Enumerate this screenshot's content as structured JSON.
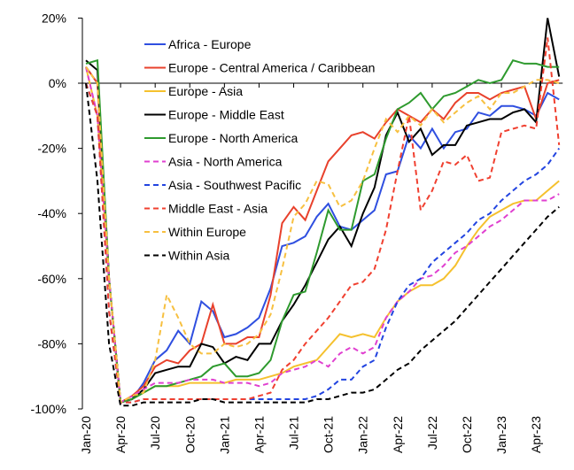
{
  "chart_data": {
    "type": "line",
    "categories": [
      "Jan-20",
      null,
      null,
      "Apr-20",
      null,
      null,
      "Jul-20",
      null,
      null,
      "Oct-20",
      null,
      null,
      "Jan-21",
      null,
      null,
      "Apr-21",
      null,
      null,
      "Jul-21",
      null,
      null,
      "Oct-21",
      null,
      null,
      "Jan-22",
      null,
      null,
      "Apr-22",
      null,
      null,
      "Jul-22",
      null,
      null,
      "Oct-22",
      null,
      null,
      "Jan-23",
      null,
      null,
      "Apr-23",
      null,
      null
    ],
    "ylim": [
      -100,
      20
    ],
    "yticks": [
      {
        "value": -100,
        "label": "-100%"
      },
      {
        "value": -80,
        "label": "-80%"
      },
      {
        "value": -60,
        "label": "-60%"
      },
      {
        "value": -40,
        "label": "-40%"
      },
      {
        "value": -20,
        "label": "-20%"
      },
      {
        "value": 0,
        "label": "0%"
      },
      {
        "value": 20,
        "label": "20%"
      }
    ],
    "grid": false,
    "series": [
      {
        "name": "Africa - Europe",
        "color": "#2f4fe0",
        "dashed": false,
        "values": [
          5,
          0,
          -60,
          -98,
          -97,
          -92,
          -85,
          -82,
          -76,
          -80,
          -67,
          -70,
          -78,
          -77,
          -75,
          -72,
          -63,
          -50,
          -49,
          -47,
          -41,
          -37,
          -44,
          -45,
          -42,
          -39,
          -28,
          -27,
          -16,
          -20,
          -14,
          -20,
          -15,
          -14,
          -9,
          -10,
          -7,
          -7,
          -8,
          -10,
          -3,
          -5
        ]
      },
      {
        "name": "Europe - Central America / Caribbean",
        "color": "#e8412c",
        "dashed": false,
        "values": [
          5,
          0,
          -60,
          -98,
          -96,
          -93,
          -87,
          -85,
          -86,
          -82,
          -80,
          -68,
          -80,
          -80,
          -78,
          -78,
          -65,
          -43,
          -38,
          -42,
          -33,
          -24,
          -20,
          -16,
          -15,
          -17,
          -12,
          -8,
          -10,
          -12,
          -8,
          -11,
          -6,
          -3,
          -3,
          -5,
          -3,
          -2,
          -1,
          -11,
          0,
          1
        ]
      },
      {
        "name": "Europe - Asia",
        "color": "#f5c12e",
        "dashed": false,
        "values": [
          5,
          -10,
          -60,
          -98,
          -97,
          -95,
          -93,
          -93,
          -93,
          -92,
          -92,
          -92,
          -92,
          -91,
          -91,
          -91,
          -90,
          -89,
          -87,
          -86,
          -85,
          -81,
          -77,
          -78,
          -77,
          -78,
          -72,
          -67,
          -64,
          -62,
          -62,
          -60,
          -56,
          -50,
          -45,
          -41,
          -39,
          -37,
          -36,
          -36,
          -33,
          -30
        ]
      },
      {
        "name": "Europe - Middle East",
        "color": "#000000",
        "dashed": false,
        "values": [
          7,
          4,
          -60,
          -98,
          -97,
          -94,
          -89,
          -88,
          -87,
          -87,
          -80,
          -81,
          -86,
          -84,
          -85,
          -80,
          -80,
          -73,
          -68,
          -62,
          -55,
          -48,
          -44,
          -50,
          -40,
          -32,
          -16,
          -9,
          -18,
          -14,
          -22,
          -19,
          -19,
          -13,
          -12,
          -11,
          -11,
          -9,
          -8,
          -12,
          20,
          2
        ]
      },
      {
        "name": "Europe - North America",
        "color": "#2e9a2e",
        "dashed": false,
        "values": [
          6,
          7,
          -60,
          -98,
          -97,
          -95,
          -93,
          -93,
          -92,
          -91,
          -90,
          -87,
          -86,
          -90,
          -90,
          -89,
          -85,
          -73,
          -65,
          -64,
          -52,
          -39,
          -45,
          -45,
          -30,
          -28,
          -17,
          -8,
          -6,
          -3,
          -8,
          -4,
          -3,
          -1,
          1,
          0,
          1,
          7,
          6,
          6,
          5,
          5
        ]
      },
      {
        "name": "Asia - North America",
        "color": "#e040d0",
        "dashed": true,
        "values": [
          5,
          -10,
          -60,
          -98,
          -96,
          -94,
          -92,
          -92,
          -92,
          -91,
          -91,
          -91,
          -92,
          -92,
          -92,
          -93,
          -92,
          -89,
          -88,
          -87,
          -85,
          -87,
          -83,
          -81,
          -83,
          -81,
          -72,
          -67,
          -64,
          -60,
          -59,
          -56,
          -52,
          -50,
          -47,
          -44,
          -42,
          -39,
          -36,
          -36,
          -36,
          -34
        ]
      },
      {
        "name": "Asia - Southwest Pacific",
        "color": "#2244e0",
        "dashed": true,
        "values": [
          0,
          -10,
          -70,
          -98,
          -98,
          -97,
          -97,
          -97,
          -97,
          -97,
          -97,
          -97,
          -97,
          -97,
          -97,
          -97,
          -97,
          -97,
          -97,
          -97,
          -96,
          -94,
          -91,
          -91,
          -87,
          -85,
          -75,
          -67,
          -62,
          -60,
          -55,
          -52,
          -49,
          -46,
          -42,
          -40,
          -36,
          -33,
          -30,
          -28,
          -25,
          -20
        ]
      },
      {
        "name": "Middle East - Asia",
        "color": "#f04030",
        "dashed": true,
        "values": [
          0,
          -10,
          -70,
          -98,
          -98,
          -97,
          -97,
          -97,
          -97,
          -97,
          -97,
          -97,
          -97,
          -97,
          -97,
          -96,
          -95,
          -88,
          -85,
          -80,
          -76,
          -72,
          -67,
          -62,
          -61,
          -57,
          -45,
          -27,
          -10,
          -39,
          -33,
          -24,
          -25,
          -22,
          -30,
          -29,
          -15,
          -14,
          -13,
          -14,
          14,
          -19
        ]
      },
      {
        "name": "Within Europe",
        "color": "#f7c040",
        "dashed": true,
        "values": [
          5,
          0,
          -60,
          -98,
          -96,
          -95,
          -85,
          -65,
          -72,
          -80,
          -83,
          -83,
          -80,
          -81,
          -80,
          -77,
          -71,
          -57,
          -41,
          -37,
          -30,
          -31,
          -38,
          -36,
          -30,
          -20,
          -11,
          -15,
          -10,
          -13,
          -8,
          -12,
          -9,
          -6,
          -4,
          -8,
          -3,
          -3,
          -1,
          1,
          1,
          0
        ]
      },
      {
        "name": "Within Asia",
        "color": "#000000",
        "dashed": true,
        "values": [
          0,
          -30,
          -80,
          -99,
          -99,
          -98,
          -98,
          -98,
          -98,
          -98,
          -97,
          -97,
          -98,
          -98,
          -98,
          -98,
          -98,
          -98,
          -98,
          -98,
          -97,
          -97,
          -96,
          -95,
          -95,
          -94,
          -91,
          -88,
          -86,
          -82,
          -79,
          -76,
          -73,
          -69,
          -65,
          -61,
          -57,
          -53,
          -49,
          -45,
          -41,
          -38
        ]
      }
    ]
  }
}
